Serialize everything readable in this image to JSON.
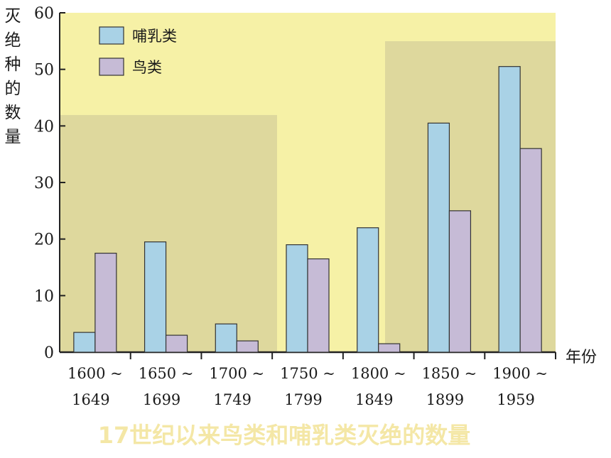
{
  "caption": "17世纪以来鸟类和哺乳类灭绝的数量",
  "chart_data": {
    "type": "bar",
    "categories": [
      [
        "1600 ~",
        "1649"
      ],
      [
        "1650 ~",
        "1699"
      ],
      [
        "1700 ~",
        "1749"
      ],
      [
        "1750 ~",
        "1799"
      ],
      [
        "1800 ~",
        "1849"
      ],
      [
        "1850 ~",
        "1899"
      ],
      [
        "1900 ~",
        "1959"
      ]
    ],
    "series": [
      {
        "name": "哺乳类",
        "color": "#a9d2e6",
        "values": [
          3.5,
          19.5,
          5,
          19,
          22,
          40.5,
          50.5
        ]
      },
      {
        "name": "鸟类",
        "color": "#c6bbd6",
        "values": [
          17.5,
          3,
          2,
          16.5,
          1.5,
          25,
          36
        ]
      }
    ],
    "ylabel": "灭绝种的数量",
    "xlabel": "年份",
    "ylim": [
      0,
      60
    ],
    "yticks": [
      0,
      10,
      20,
      30,
      40,
      50,
      60
    ],
    "legend_position": "top-left",
    "plot_bg": "#f6f1a6",
    "shade_color": "#d6cf9a"
  }
}
